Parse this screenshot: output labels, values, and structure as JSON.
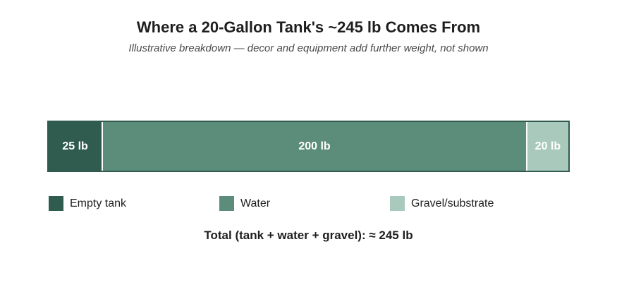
{
  "chart_data": {
    "type": "bar",
    "orientation": "horizontal-stacked",
    "title": "Where a 20-Gallon Tank's ~245 lb Comes From",
    "subtitle": "Illustrative breakdown — decor and equipment add further weight, not shown",
    "unit": "lb",
    "series": [
      {
        "name": "Empty tank",
        "value": 25,
        "label": "25 lb",
        "color": "#2f5c4e"
      },
      {
        "name": "Water",
        "value": 200,
        "label": "200 lb",
        "color": "#5c8c7a"
      },
      {
        "name": "Gravel/substrate",
        "value": 20,
        "label": "20 lb",
        "color": "#a8c9bc"
      }
    ],
    "total_label": "Total (tank + water + gravel): ≈ 245 lb",
    "legend_position": "bottom"
  }
}
